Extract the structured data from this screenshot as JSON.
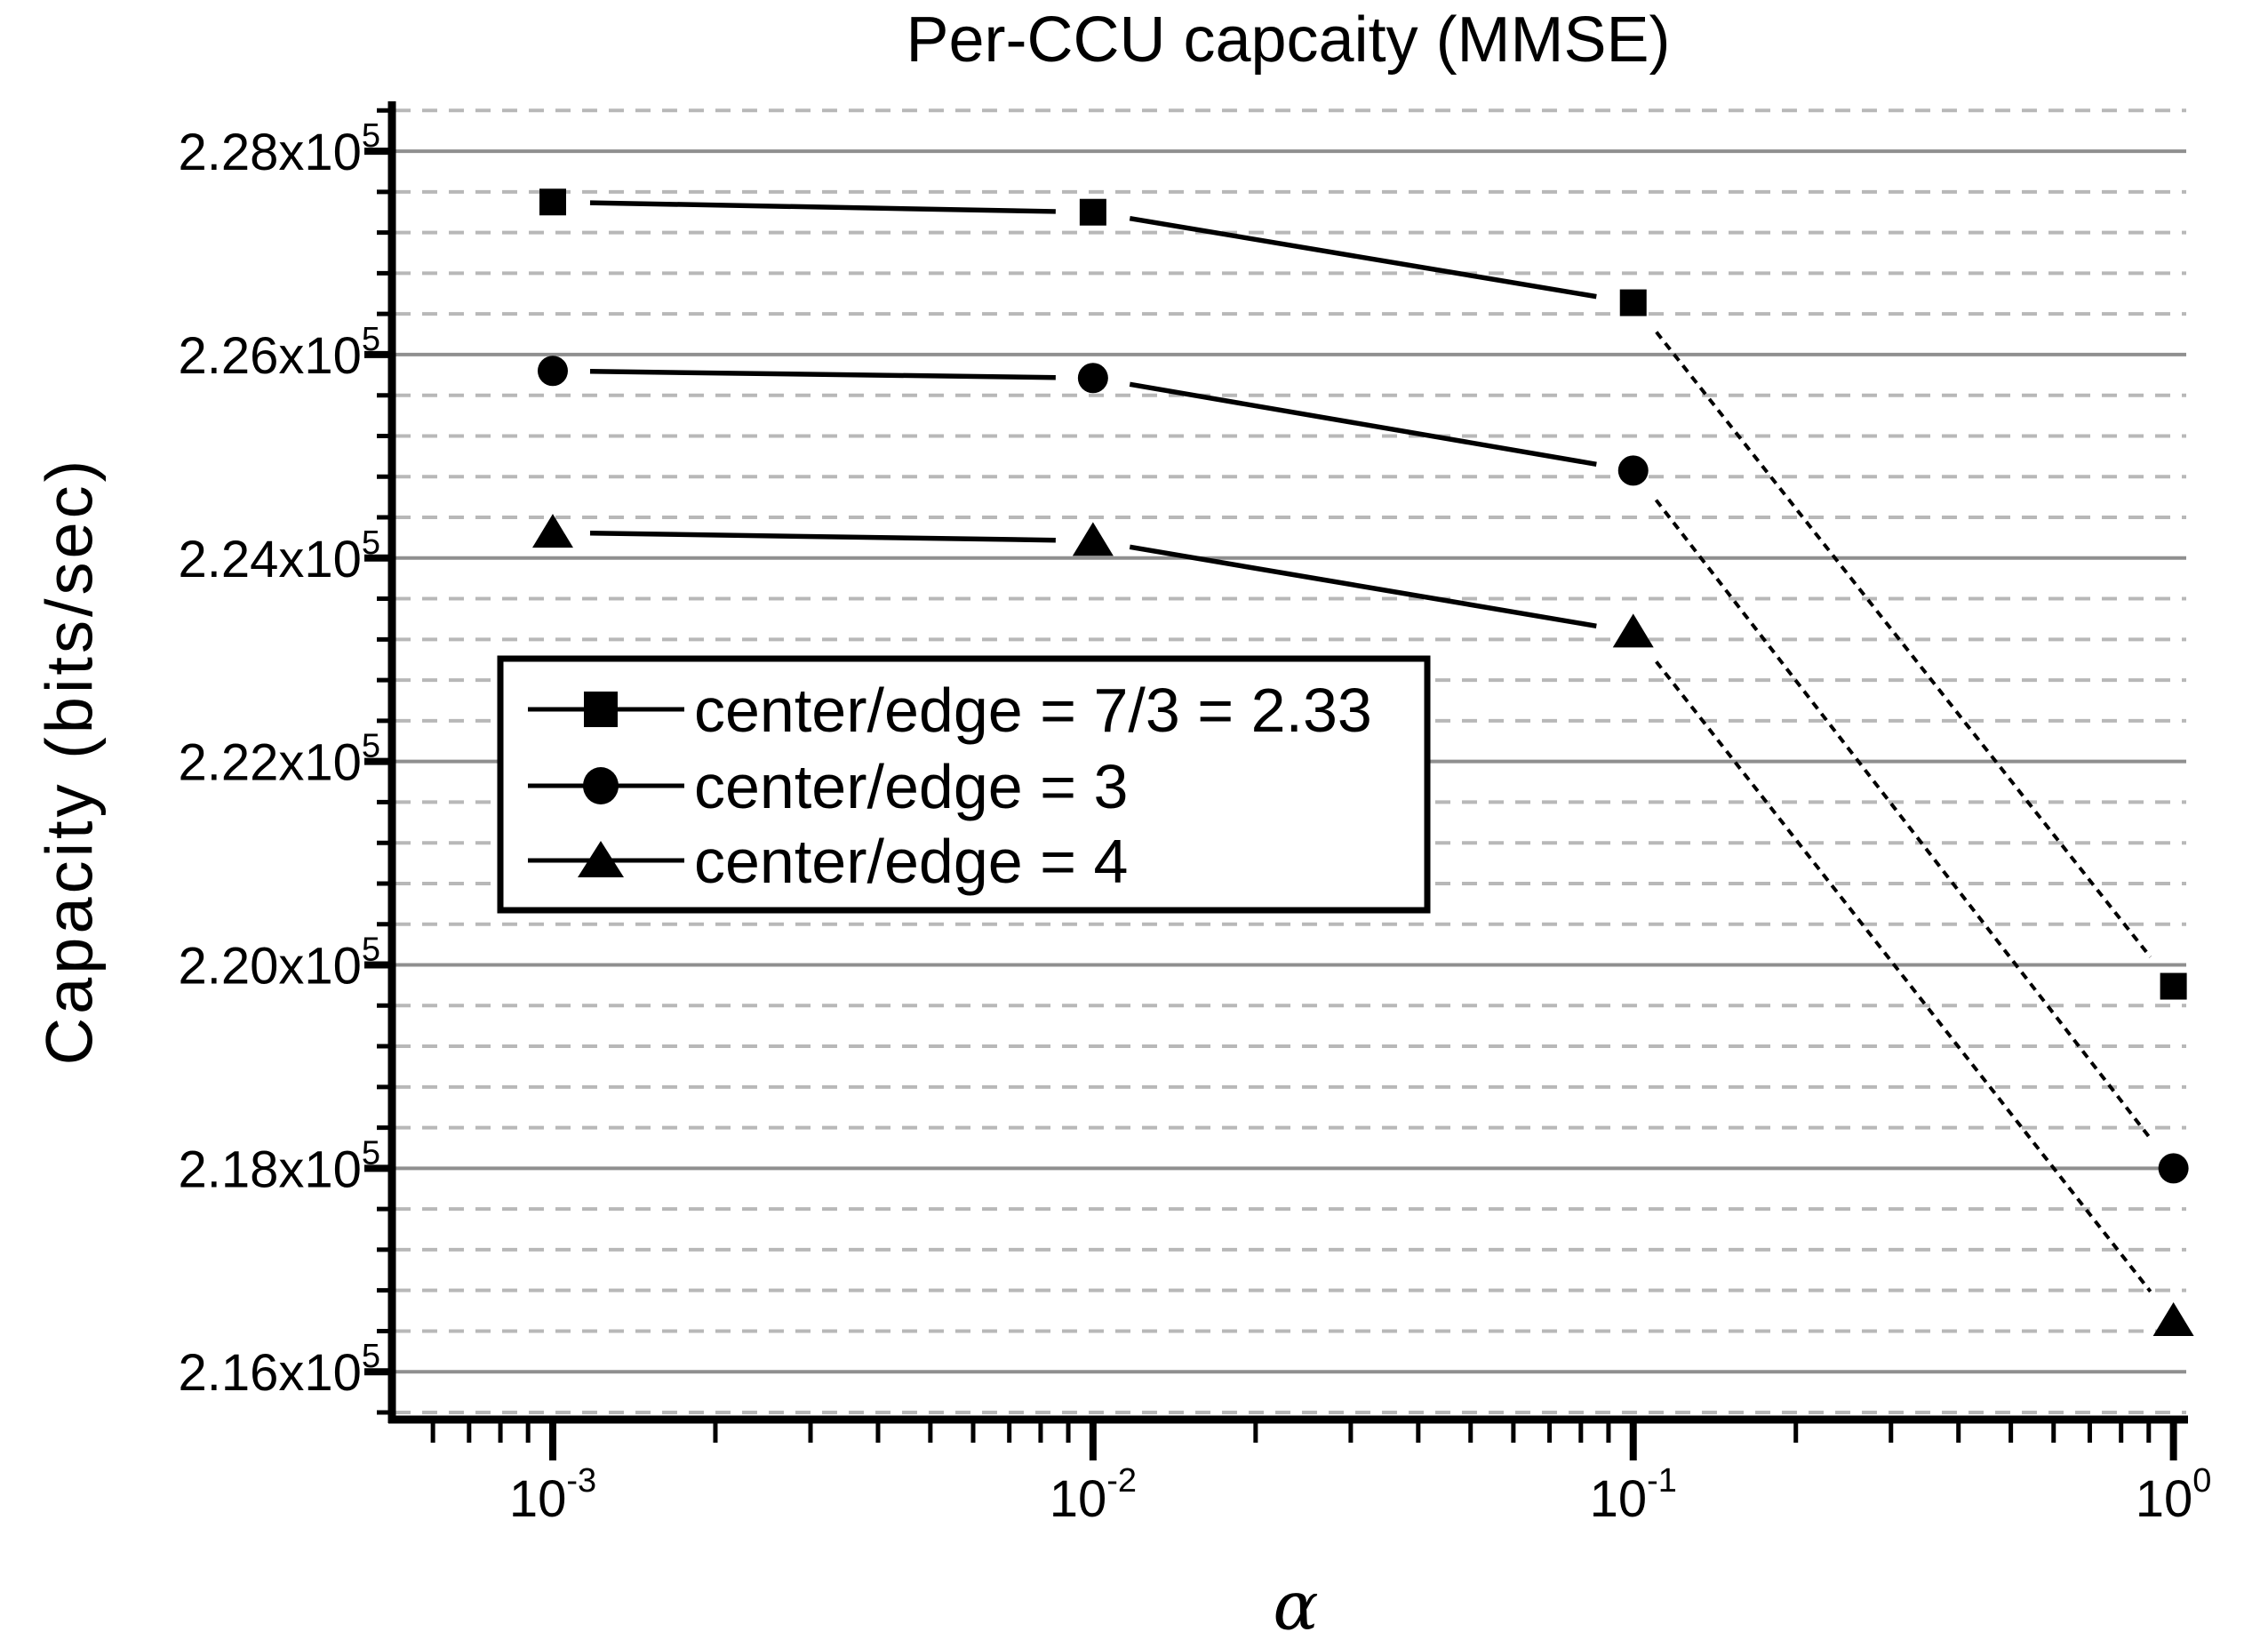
{
  "colors": {
    "background": "#ffffff",
    "text": "#000000",
    "series_line": "#000000",
    "major_grid": "#8f8f8f",
    "minor_grid": "#b8b8b8",
    "axis": "#000000",
    "legend_background": "#ffffff",
    "legend_border": "#000000"
  },
  "chart_data": {
    "type": "line",
    "title": "Per-CCU capcaity (MMSE)",
    "xlabel": "α",
    "ylabel": "Capacity (bits/sec)",
    "x_scale": "log",
    "y_scale": "linear",
    "xlim": [
      0.0005,
      1.056
    ],
    "ylim": [
      215530,
      228490
    ],
    "grid": {
      "y_major_solid": true,
      "y_minor_dashed": true,
      "x_grid": false
    },
    "y_exp": "5",
    "y_major_step": 2000,
    "y_minor_step": 400,
    "y_minor_start": 215600,
    "y_minor_end": 228400,
    "y_major_ticks": [
      216000,
      218000,
      220000,
      222000,
      224000,
      226000,
      228000
    ],
    "y_tick_labels": [
      "2.16x10^5",
      "2.18x10^5",
      "2.20x10^5",
      "2.22x10^5",
      "2.24x10^5",
      "2.26x10^5",
      "2.28x10^5"
    ],
    "x_major_ticks": [
      0.001,
      0.01,
      0.1,
      1
    ],
    "x_tick_labels": [
      "10^-3",
      "10^-2",
      "10^-1",
      "10^0"
    ],
    "x_minor_decades": [
      -4,
      -3,
      -2,
      -1
    ],
    "x": [
      0.001,
      0.01,
      0.1,
      1
    ],
    "series": [
      {
        "name": "center/edge = 7/3 = 2.33",
        "marker": "square",
        "values": [
          227500,
          227400,
          226510,
          219790
        ]
      },
      {
        "name": "center/edge = 3",
        "marker": "circle",
        "values": [
          225840,
          225770,
          224860,
          218000
        ]
      },
      {
        "name": "center/edge = 4",
        "marker": "triangle",
        "values": [
          224250,
          224170,
          223270,
          216500
        ]
      }
    ],
    "legend": {
      "position": "upper-left-of-center",
      "entries": [
        "center/edge = 7/3 = 2.33",
        "center/edge = 3",
        "center/edge = 4"
      ]
    }
  }
}
